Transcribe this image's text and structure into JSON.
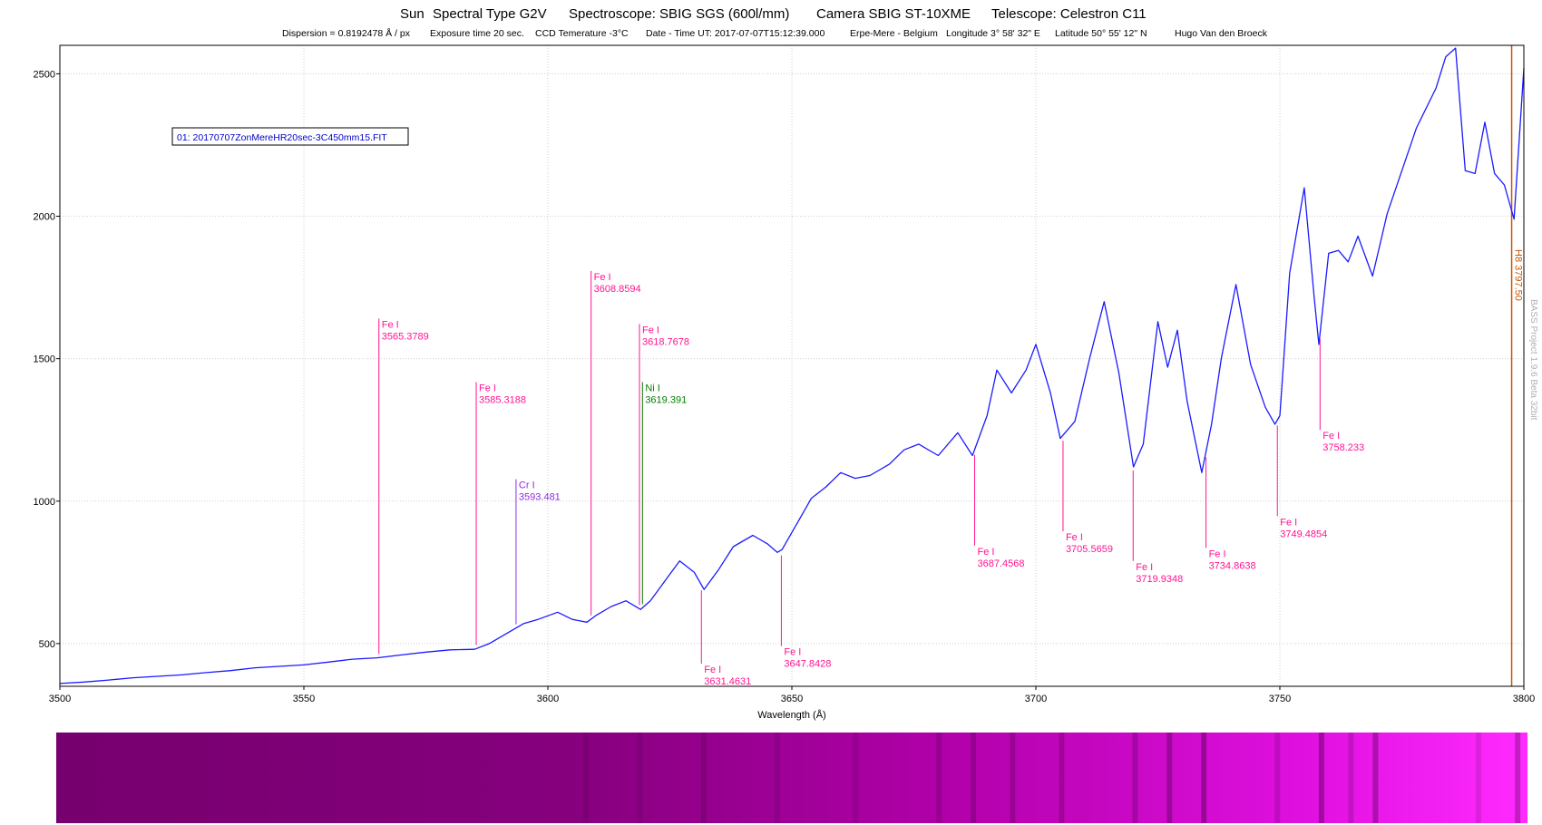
{
  "header": {
    "title_parts": [
      "Sun",
      "Spectral Type G2V",
      "Spectroscope: SBIG SGS (600l/mm)",
      "Camera SBIG ST-10XME",
      "Telescope:  Celestron C11"
    ],
    "subtitle_parts": [
      "Dispersion = 0.8192478 Å / px",
      "Exposure time 20 sec.",
      "CCD Temerature -3°C",
      "Date - Time UT:  2017-07-07T15:12:39.000",
      "Erpe-Mere - Belgium",
      "Longitude 3° 58' 32\"  E",
      "Latitude 50° 55' 12\"  N",
      "Hugo Van den Broeck"
    ]
  },
  "legend": {
    "file_label": "01: 20170707ZonMereHR20sec-3C450mm15.FIT"
  },
  "watermark": "BASS Project 1.9.6 Beta 32bit",
  "colors": {
    "series": "#1a1aff",
    "fe": "#ff1493",
    "cr": "#8a2be2",
    "ni": "#008000",
    "halpha": "#cc5500",
    "grid": "#cfcfcf",
    "strip_start": "#7a0070",
    "strip_end": "#ff20ff"
  },
  "chart_data": {
    "type": "line",
    "title": "",
    "xlabel": "Wavelength (Å)",
    "ylabel": "",
    "xlim": [
      3500,
      3800
    ],
    "ylim": [
      350,
      2600
    ],
    "x_ticks": [
      3500,
      3550,
      3600,
      3650,
      3700,
      3750,
      3800
    ],
    "y_ticks": [
      500,
      1000,
      1500,
      2000,
      2500
    ],
    "grid": true,
    "series": [
      {
        "x": [
          3500,
          3505,
          3510,
          3515,
          3520,
          3525,
          3530,
          3535,
          3540,
          3545,
          3550,
          3555,
          3560,
          3565,
          3570,
          3575,
          3580,
          3585,
          3588,
          3592,
          3595,
          3598,
          3602,
          3605,
          3608,
          3610,
          3613,
          3616,
          3619,
          3621,
          3624,
          3627,
          3630,
          3632,
          3635,
          3638,
          3642,
          3645,
          3647,
          3648,
          3651,
          3654,
          3657,
          3660,
          3663,
          3666,
          3670,
          3673,
          3676,
          3680,
          3684,
          3687,
          3690,
          3692,
          3695,
          3698,
          3700,
          3703,
          3705,
          3708,
          3711,
          3714,
          3717,
          3720,
          3722,
          3725,
          3727,
          3729,
          3731,
          3734,
          3736,
          3738,
          3741,
          3744,
          3747,
          3749,
          3750,
          3752,
          3755,
          3757,
          3758,
          3760,
          3762,
          3764,
          3766,
          3769,
          3772,
          3775,
          3778,
          3780,
          3782,
          3784,
          3786,
          3788,
          3790,
          3792,
          3794,
          3796,
          3798,
          3800
        ],
        "values": [
          360,
          365,
          372,
          380,
          385,
          390,
          398,
          405,
          415,
          420,
          425,
          435,
          445,
          450,
          460,
          470,
          478,
          480,
          500,
          540,
          570,
          585,
          610,
          585,
          575,
          600,
          630,
          650,
          620,
          650,
          720,
          790,
          750,
          690,
          760,
          840,
          880,
          850,
          820,
          830,
          920,
          1010,
          1050,
          1100,
          1080,
          1090,
          1130,
          1180,
          1200,
          1160,
          1240,
          1160,
          1300,
          1460,
          1380,
          1460,
          1550,
          1380,
          1220,
          1280,
          1500,
          1700,
          1450,
          1120,
          1200,
          1630,
          1470,
          1600,
          1350,
          1100,
          1270,
          1500,
          1760,
          1480,
          1330,
          1270,
          1300,
          1800,
          2100,
          1720,
          1550,
          1870,
          1880,
          1840,
          1930,
          1790,
          2010,
          2160,
          2310,
          2380,
          2450,
          2560,
          2590,
          2160,
          2150,
          2330,
          2150,
          2110,
          1990,
          2520
        ]
      }
    ],
    "annotations": [
      {
        "element": "Fe I",
        "wavelength": "3565.3789",
        "kind": "fe"
      },
      {
        "element": "Fe I",
        "wavelength": "3585.3188",
        "kind": "fe"
      },
      {
        "element": "Cr I",
        "wavelength": "3593.481",
        "kind": "cr"
      },
      {
        "element": "Fe I",
        "wavelength": "3608.8594",
        "kind": "fe"
      },
      {
        "element": "Fe I",
        "wavelength": "3618.7678",
        "kind": "fe"
      },
      {
        "element": "Ni I",
        "wavelength": "3619.391",
        "kind": "ni"
      },
      {
        "element": "Fe I",
        "wavelength": "3631.4631",
        "kind": "fe"
      },
      {
        "element": "Fe I",
        "wavelength": "3647.8428",
        "kind": "fe"
      },
      {
        "element": "Fe I",
        "wavelength": "3687.4568",
        "kind": "fe"
      },
      {
        "element": "Fe I",
        "wavelength": "3705.5659",
        "kind": "fe"
      },
      {
        "element": "Fe I",
        "wavelength": "3719.9348",
        "kind": "fe"
      },
      {
        "element": "Fe I",
        "wavelength": "3734.8638",
        "kind": "fe"
      },
      {
        "element": "Fe I",
        "wavelength": "3749.4854",
        "kind": "fe"
      },
      {
        "element": "Fe I",
        "wavelength": "3758.233",
        "kind": "fe"
      }
    ],
    "marker": {
      "label": "H8 3797.50",
      "wavelength": 3797.5
    }
  }
}
